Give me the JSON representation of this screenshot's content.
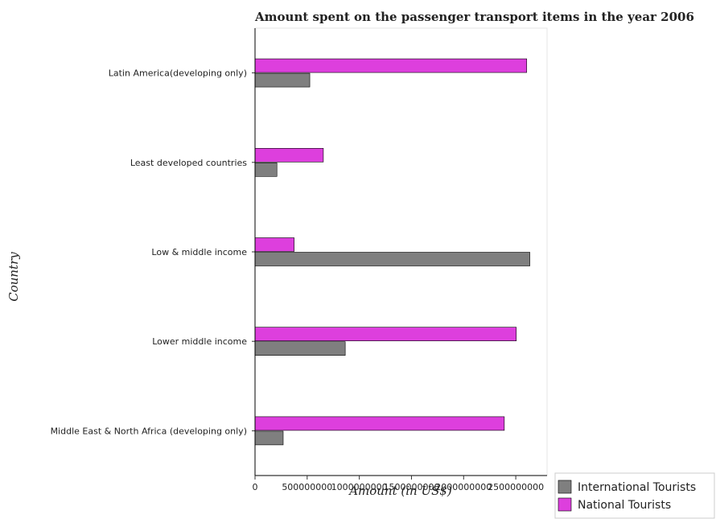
{
  "chart_data": {
    "type": "bar",
    "orientation": "horizontal",
    "title": "Amount spent on the passenger transport items in the year 2006",
    "xlabel": "Amount (in US$)",
    "ylabel": "Country",
    "categories": [
      "Latin America(developing only)",
      "Least developed countries",
      "Low & middle income",
      "Lower middle income",
      "Middle East & North Africa (developing only)"
    ],
    "series": [
      {
        "name": "International Tourists",
        "color": "#7f7f7f",
        "values": [
          525000000,
          210000000,
          2635000000,
          865000000,
          270000000
        ]
      },
      {
        "name": "National Tourists",
        "color": "#dd3fdd",
        "values": [
          2605000000,
          655000000,
          375000000,
          2505000000,
          2390000000
        ]
      }
    ],
    "xlim": [
      0,
      2800000000
    ],
    "xticks": [
      0,
      500000000,
      1000000000,
      1500000000,
      2000000000,
      2500000000
    ],
    "xtick_labels": [
      "0",
      "500000000",
      "1000000000",
      "1500000000",
      "2000000000",
      "2500000000"
    ],
    "grid": false,
    "legend_position": "bottom-right"
  }
}
